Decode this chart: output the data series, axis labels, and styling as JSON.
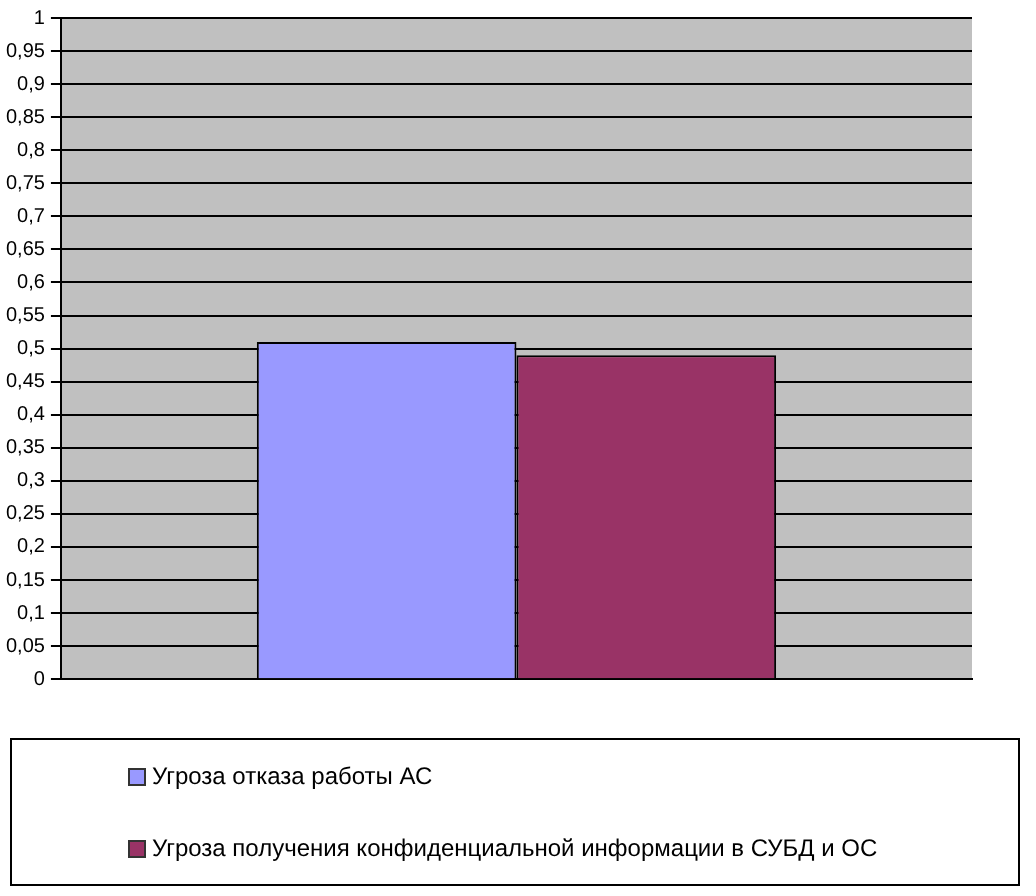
{
  "chart_data": {
    "type": "bar",
    "categories": [
      null
    ],
    "series": [
      {
        "name": "Угроза отказа работы АС",
        "color": "#9999ff",
        "values": [
          0.51
        ]
      },
      {
        "name": "Угроза получения конфиденциальной информации в СУБД и ОС",
        "color": "#993366",
        "values": [
          0.49
        ]
      }
    ],
    "ylim": [
      0,
      1
    ],
    "yticks": [
      0,
      {
        "value": 0.05,
        "label": "0,05"
      },
      {
        "value": 0.1,
        "label": "0,1"
      },
      {
        "value": 0.15,
        "label": "0,15"
      },
      {
        "value": 0.2,
        "label": "0,2"
      },
      {
        "value": 0.25,
        "label": "0,25"
      },
      {
        "value": 0.3,
        "label": "0,3"
      },
      {
        "value": 0.35,
        "label": "0,35"
      },
      {
        "value": 0.4,
        "label": "0,4"
      },
      {
        "value": 0.45,
        "label": "0,45"
      },
      {
        "value": 0.5,
        "label": "0,5"
      },
      {
        "value": 0.55,
        "label": "0,55"
      },
      {
        "value": 0.6,
        "label": "0,6"
      },
      {
        "value": 0.65,
        "label": "0,65"
      },
      {
        "value": 0.7,
        "label": "0,7"
      },
      {
        "value": 0.75,
        "label": "0,75"
      },
      {
        "value": 0.8,
        "label": "0,8"
      },
      {
        "value": 0.85,
        "label": "0,85"
      },
      {
        "value": 0.9,
        "label": "0,9"
      },
      {
        "value": 0.95,
        "label": "0,95"
      },
      1
    ],
    "grid": "y",
    "legend": "bottom"
  }
}
